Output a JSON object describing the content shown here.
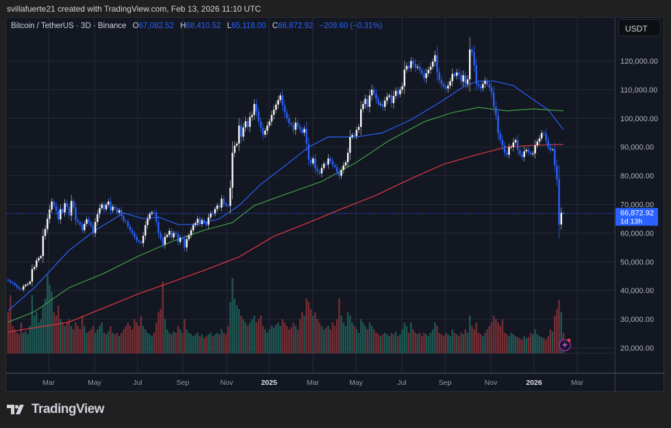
{
  "credit": "svillafuerte21 created with TradingView.com, Feb 13, 2026 11:10 UTC",
  "legend": {
    "symbol": "Bitcoin / TetherUS · 3D · Binance",
    "o_label": "O",
    "o": "67,082.52",
    "h_label": "H",
    "h": "68,410.52",
    "l_label": "L",
    "l": "65,118.00",
    "c_label": "C",
    "c": "66,872.92",
    "change": "−209.60 (−0.31%)"
  },
  "currency_button": "USDT",
  "logo_text": "TradingView",
  "colors": {
    "up": "#ffffff",
    "down": "#2962ff",
    "vol_up": "#1f5d57",
    "vol_down": "#7b2f35",
    "ma_fast": "#2962ff",
    "ma_mid": "#43a047",
    "ma_slow": "#e53945",
    "accent": "#2962ff"
  },
  "chart_data": {
    "type": "candlestick",
    "interval": "3D",
    "ylim": [
      17000,
      133000
    ],
    "grid": true,
    "y_ticks": [
      "20,000.00",
      "30,000.00",
      "40,000.00",
      "50,000.00",
      "60,000.00",
      "70,000.00",
      "80,000.00",
      "90,000.00",
      "100,000.00",
      "110,000.00",
      "120,000.00"
    ],
    "y_tick_values": [
      20000,
      30000,
      40000,
      50000,
      60000,
      70000,
      80000,
      90000,
      100000,
      110000,
      120000
    ],
    "x_ticks": [
      {
        "label": "Mar",
        "bold": false
      },
      {
        "label": "May",
        "bold": false
      },
      {
        "label": "Jul",
        "bold": false
      },
      {
        "label": "Sep",
        "bold": false
      },
      {
        "label": "Nov",
        "bold": false
      },
      {
        "label": "2025",
        "bold": true
      },
      {
        "label": "Mar",
        "bold": false
      },
      {
        "label": "May",
        "bold": false
      },
      {
        "label": "Jul",
        "bold": false
      },
      {
        "label": "Sep",
        "bold": false
      },
      {
        "label": "Nov",
        "bold": false
      },
      {
        "label": "2026",
        "bold": true
      },
      {
        "label": "Mar",
        "bold": false
      }
    ],
    "last_price": {
      "value": 66872.92,
      "label": "66,872.92",
      "countdown": "1d 13h"
    },
    "closes": [
      43400,
      42800,
      42600,
      41900,
      41200,
      40600,
      40300,
      41500,
      42000,
      42300,
      43100,
      47500,
      48200,
      50500,
      51300,
      52000,
      59000,
      61400,
      65000,
      68200,
      71000,
      69600,
      67800,
      64800,
      68300,
      67200,
      70400,
      69100,
      66200,
      71200,
      68900,
      64500,
      63800,
      62900,
      61000,
      63200,
      64800,
      63700,
      62600,
      60000,
      63900,
      66600,
      68700,
      70000,
      68300,
      69900,
      71000,
      67900,
      69200,
      68600,
      67100,
      68000,
      66000,
      64200,
      64000,
      62300,
      61000,
      60000,
      58600,
      57400,
      56900,
      56500,
      59100,
      62800,
      65000,
      66700,
      67200,
      67000,
      63900,
      60000,
      58100,
      56000,
      58700,
      59400,
      60800,
      58500,
      60000,
      59600,
      56900,
      58300,
      58000,
      55000,
      57900,
      59300,
      61000,
      62800,
      63500,
      65000,
      63200,
      64500,
      63700,
      62900,
      65500,
      67000,
      66700,
      68400,
      69600,
      68900,
      72000,
      70300,
      69600,
      69500,
      75800,
      88000,
      90500,
      91200,
      97500,
      93600,
      96800,
      99000,
      97000,
      100500,
      101200,
      105000,
      102400,
      99000,
      96600,
      94300,
      95700,
      97500,
      98900,
      101200,
      103000,
      104800,
      106400,
      108000,
      104500,
      102000,
      100000,
      98300,
      97800,
      96000,
      98500,
      97100,
      96200,
      95000,
      96300,
      91200,
      85600,
      84300,
      86000,
      82500,
      81500,
      80800,
      82700,
      84200,
      83900,
      86000,
      85100,
      83800,
      83000,
      81300,
      80000,
      82000,
      83600,
      84700,
      88000,
      93500,
      94200,
      93800,
      96000,
      97000,
      103200,
      105000,
      106800,
      104000,
      108000,
      110000,
      108500,
      106700,
      105000,
      105000,
      104000,
      106200,
      107500,
      108000,
      105300,
      107800,
      109600,
      108400,
      110000,
      111200,
      117000,
      118300,
      117500,
      120000,
      119000,
      117700,
      118000,
      116800,
      115600,
      114000,
      115700,
      116900,
      118000,
      119800,
      122000,
      116000,
      113400,
      112000,
      111000,
      110400,
      111400,
      112900,
      115500,
      114800,
      116000,
      115200,
      112800,
      115000,
      112000,
      113600,
      124000,
      123000,
      118500,
      112000,
      111200,
      110500,
      112000,
      113000,
      111800,
      110700,
      109000,
      104000,
      101000,
      94700,
      92500,
      90600,
      88000,
      87300,
      90000,
      90000,
      91600,
      92400,
      89000,
      87500,
      86500,
      88500,
      89000,
      88100,
      87500,
      87800,
      90600,
      91900,
      93000,
      94900,
      94700,
      92300,
      90000,
      89000,
      89200,
      83500,
      78700,
      63000,
      67082.52,
      66872.92
    ],
    "volume_relative": [
      60,
      85,
      40,
      35,
      30,
      28,
      45,
      30,
      32,
      28,
      40,
      85,
      55,
      60,
      45,
      50,
      70,
      80,
      115,
      100,
      90,
      60,
      55,
      70,
      50,
      45,
      40,
      45,
      50,
      40,
      35,
      45,
      40,
      35,
      55,
      40,
      30,
      32,
      35,
      40,
      30,
      35,
      40,
      45,
      30,
      28,
      32,
      40,
      30,
      28,
      30,
      25,
      30,
      35,
      40,
      45,
      40,
      35,
      50,
      45,
      40,
      55,
      40,
      35,
      30,
      28,
      25,
      30,
      45,
      60,
      65,
      105,
      50,
      35,
      30,
      28,
      32,
      30,
      40,
      35,
      30,
      50,
      35,
      30,
      28,
      25,
      28,
      30,
      25,
      28,
      22,
      25,
      28,
      30,
      25,
      28,
      30,
      28,
      35,
      30,
      28,
      40,
      75,
      110,
      80,
      70,
      65,
      55,
      50,
      45,
      40,
      45,
      50,
      55,
      45,
      50,
      55,
      40,
      35,
      30,
      35,
      40,
      38,
      42,
      45,
      40,
      50,
      45,
      40,
      35,
      38,
      45,
      40,
      35,
      50,
      60,
      55,
      80,
      75,
      65,
      55,
      60,
      50,
      45,
      40,
      35,
      38,
      40,
      35,
      45,
      40,
      50,
      80,
      55,
      45,
      40,
      60,
      55,
      45,
      40,
      35,
      30,
      50,
      45,
      40,
      35,
      45,
      40,
      35,
      30,
      28,
      25,
      28,
      30,
      28,
      25,
      30,
      28,
      32,
      25,
      28,
      35,
      45,
      40,
      30,
      45,
      35,
      30,
      28,
      30,
      25,
      30,
      28,
      25,
      30,
      35,
      45,
      40,
      30,
      28,
      25,
      30,
      28,
      25,
      35,
      30,
      28,
      25,
      30,
      28,
      35,
      30,
      55,
      40,
      35,
      45,
      30,
      28,
      25,
      30,
      35,
      40,
      45,
      55,
      50,
      45,
      40,
      50,
      30,
      28,
      25,
      30,
      28,
      25,
      24,
      22,
      20,
      25,
      22,
      24,
      30,
      28,
      35,
      28,
      25,
      24,
      22,
      20,
      25,
      35,
      32,
      55,
      65,
      78,
      60,
      30
    ],
    "moving_averages": [
      {
        "color_key": "ma_fast",
        "points": [
          [
            0,
            33000
          ],
          [
            12,
            41000
          ],
          [
            28,
            54000
          ],
          [
            40,
            61000
          ],
          [
            53,
            67000
          ],
          [
            62,
            65000
          ],
          [
            69,
            65600
          ],
          [
            78,
            63000
          ],
          [
            87,
            63000
          ],
          [
            97,
            65000
          ],
          [
            106,
            69600
          ],
          [
            116,
            77000
          ],
          [
            128,
            84000
          ],
          [
            138,
            90000
          ],
          [
            147,
            93500
          ],
          [
            160,
            93500
          ],
          [
            172,
            95000
          ],
          [
            185,
            99500
          ],
          [
            197,
            105000
          ],
          [
            210,
            111400
          ],
          [
            216,
            113000
          ],
          [
            223,
            113000
          ],
          [
            232,
            111400
          ],
          [
            241,
            106600
          ],
          [
            248,
            103000
          ],
          [
            255,
            96000
          ]
        ]
      },
      {
        "color_key": "ma_mid",
        "points": [
          [
            0,
            29000
          ],
          [
            12,
            32600
          ],
          [
            28,
            41000
          ],
          [
            44,
            46000
          ],
          [
            59,
            51700
          ],
          [
            75,
            57000
          ],
          [
            90,
            61000
          ],
          [
            103,
            63700
          ],
          [
            113,
            69600
          ],
          [
            128,
            73700
          ],
          [
            144,
            78000
          ],
          [
            160,
            84700
          ],
          [
            175,
            92300
          ],
          [
            191,
            98800
          ],
          [
            204,
            102000
          ],
          [
            216,
            103800
          ],
          [
            229,
            102600
          ],
          [
            241,
            103300
          ],
          [
            255,
            102600
          ]
        ]
      },
      {
        "color_key": "ma_slow",
        "points": [
          [
            0,
            25500
          ],
          [
            28,
            29000
          ],
          [
            59,
            38600
          ],
          [
            90,
            47000
          ],
          [
            106,
            51700
          ],
          [
            122,
            58900
          ],
          [
            138,
            63700
          ],
          [
            153,
            68400
          ],
          [
            169,
            73200
          ],
          [
            185,
            79000
          ],
          [
            200,
            84000
          ],
          [
            216,
            87500
          ],
          [
            229,
            90000
          ],
          [
            241,
            90600
          ],
          [
            255,
            90900
          ]
        ]
      }
    ]
  }
}
